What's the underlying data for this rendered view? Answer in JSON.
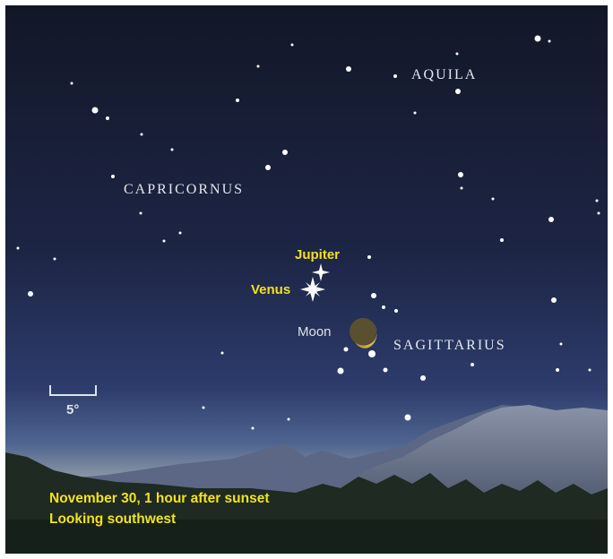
{
  "constellations": {
    "aquila": "AQUILA",
    "capricornus": "CAPRICORNUS",
    "sagittarius": "SAGITTARIUS"
  },
  "objects": {
    "jupiter": "Jupiter",
    "venus": "Venus",
    "moon": "Moon"
  },
  "scale": "5°",
  "caption": {
    "line1": "November 30, 1 hour after sunset",
    "line2": "Looking southwest"
  }
}
